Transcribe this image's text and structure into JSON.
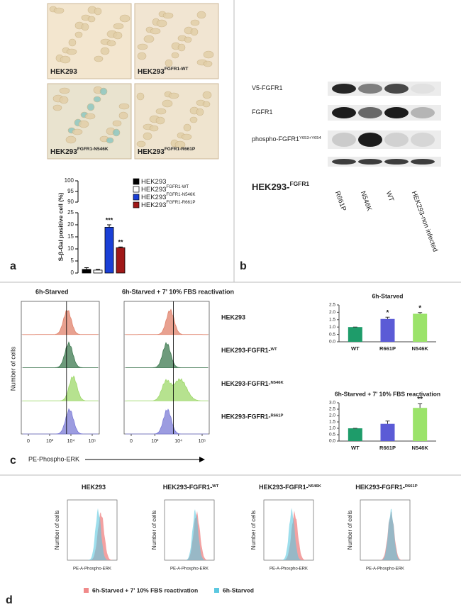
{
  "panel_letters": {
    "a": "a",
    "b": "b",
    "c": "c",
    "d": "d"
  },
  "panel_a": {
    "images": [
      {
        "label": "HEK293"
      },
      {
        "label": "HEK293",
        "sup": "FGFR1-WT"
      },
      {
        "label": "HEK293",
        "sup": "FGFR1-N546K"
      },
      {
        "label": "HEK293",
        "sup": "FGFR1-R661P"
      }
    ]
  },
  "panel_b": {
    "blot_labels": [
      {
        "label": "V5-FGFR1"
      },
      {
        "label": "FGFR1"
      },
      {
        "label": "phospho-FGFR1",
        "sup": "Y653+Y654"
      }
    ],
    "group_label": {
      "label": "HEK293-",
      "sup": "FGFR1"
    },
    "lanes": [
      "R661P",
      "N546K",
      "WT",
      "HEK293-non infected"
    ]
  },
  "panel_c": {
    "conditions": [
      "6h-Starved",
      "6h-Starved + 7' 10% FBS  reactivation"
    ],
    "rows": [
      {
        "label": "HEK293",
        "color": "#e0826b"
      },
      {
        "label": "HEK293-FGFR1-",
        "sup": "WT",
        "color": "#3d7a50"
      },
      {
        "label": "HEK293-FGFR1-",
        "sup": "N546K",
        "color": "#9ed86a"
      },
      {
        "label": "HEK293-FGFR1-",
        "sup": "R661P",
        "color": "#7b7bd6"
      }
    ],
    "y_label": "Number of cells",
    "x_label": "PE-Phospho-ERK",
    "x_tick_labels": [
      "0",
      "10³",
      "10⁴",
      "10⁵"
    ]
  },
  "panel_d": {
    "titles": [
      {
        "label": "HEK293"
      },
      {
        "label": "HEK293-FGFR1-",
        "sup": "WT"
      },
      {
        "label": "HEK293-FGFR1-",
        "sup": "N546K"
      },
      {
        "label": "HEK293-FGFR1-",
        "sup": "R661P"
      }
    ],
    "y_label": "Number of cells",
    "x_label": "PE-A-Phospho-ERK",
    "legend": [
      {
        "label": "6h-Starved + 7' 10% FBS  reactivation",
        "color": "#f08a8a"
      },
      {
        "label": "6h-Starved",
        "color": "#5bc8e0"
      }
    ]
  },
  "chart_data": [
    {
      "type": "bar",
      "y_label": "S-β-Gal positive cell (%)",
      "ylim": [
        0,
        100
      ],
      "broken_axis": [
        [
          0,
          25
        ],
        [
          90,
          100
        ]
      ],
      "yticks": [
        0,
        5,
        10,
        15,
        20,
        25,
        90,
        95,
        100
      ],
      "series": [
        {
          "name": "HEK293",
          "color": "#000000",
          "values": [
            1.5
          ],
          "errors": [
            0.7
          ]
        },
        {
          "name": "HEK293",
          "name_sup": "FGFR1-WT",
          "color": "#ffffff",
          "values": [
            1.2
          ],
          "errors": [
            0.3
          ]
        },
        {
          "name": "HEK293",
          "name_sup": "FGFR1-N546K",
          "color": "#1a3fd6",
          "values": [
            19
          ],
          "errors": [
            1.0
          ],
          "annotation": "***"
        },
        {
          "name": "HEK293",
          "name_sup": "FGFR1-R661P",
          "color": "#a01818",
          "values": [
            10.5
          ],
          "errors": [
            0.3
          ],
          "annotation": "**"
        }
      ]
    },
    {
      "type": "bar",
      "title": "6h-Starved",
      "categories": [
        "WT",
        "R661P",
        "N546K"
      ],
      "values": [
        1.0,
        1.55,
        1.9
      ],
      "errors": [
        0,
        0.12,
        0.08
      ],
      "colors": [
        "#1e9c6a",
        "#5b5bd6",
        "#9be36a"
      ],
      "annotations": [
        null,
        "*",
        "*"
      ],
      "ylim": [
        0,
        2.5
      ],
      "yticks": [
        {
          "value": 0,
          "label": "0.0"
        },
        {
          "value": 0.5,
          "label": "0.5"
        },
        {
          "value": 1,
          "label": "1.0"
        },
        {
          "value": 1.5,
          "label": "1.5"
        },
        {
          "value": 2,
          "label": "2.0"
        },
        {
          "value": 2.5,
          "label": "2.5"
        }
      ]
    },
    {
      "type": "bar",
      "title": "6h-Starved + 7' 10% FBS  reactivation",
      "categories": [
        "WT",
        "R661P",
        "N546K"
      ],
      "values": [
        1.0,
        1.35,
        2.6
      ],
      "errors": [
        0,
        0.22,
        0.32
      ],
      "colors": [
        "#1e9c6a",
        "#5b5bd6",
        "#9be36a"
      ],
      "annotations": [
        null,
        null,
        "**"
      ],
      "ylim": [
        0,
        3
      ],
      "yticks": [
        {
          "value": 0,
          "label": "0.0"
        },
        {
          "value": 0.5,
          "label": "0.5"
        },
        {
          "value": 1,
          "label": "1.0"
        },
        {
          "value": 1.5,
          "label": "1.5"
        },
        {
          "value": 2,
          "label": "2.0"
        },
        {
          "value": 2.5,
          "label": "2.5"
        },
        {
          "value": 3,
          "label": "3.0"
        }
      ]
    }
  ]
}
